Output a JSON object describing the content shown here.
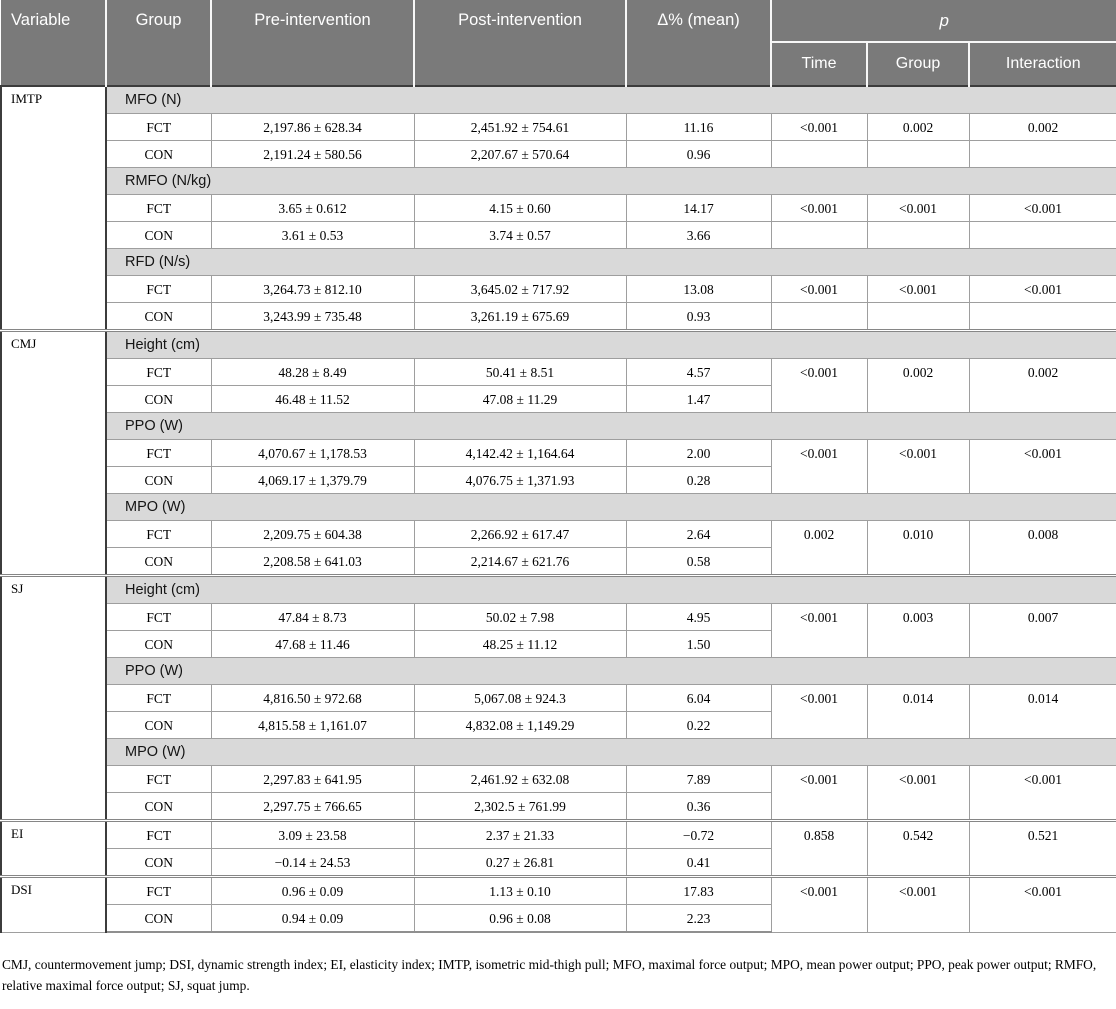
{
  "header": {
    "variable": "Variable",
    "group": "Group",
    "pre": "Pre-intervention",
    "post": "Post-intervention",
    "delta": "Δ% (mean)",
    "p": "p",
    "p_sub": {
      "time": "Time",
      "group": "Group",
      "interaction": "Interaction"
    }
  },
  "colors": {
    "header_bg": "#7a7a7a",
    "band_bg": "#d9d9d9",
    "border_light": "#9e9e9e",
    "border_dark": "#3c3c3c"
  },
  "sections": [
    {
      "variable": "IMTP",
      "measures": [
        {
          "label": "MFO (N)",
          "p_merged": false,
          "rows": [
            {
              "group": "FCT",
              "pre": "2,197.86 ± 628.34",
              "post": "2,451.92 ± 754.61",
              "delta": "11.16",
              "p_time": "<0.001",
              "p_group": "0.002",
              "p_interaction": "0.002"
            },
            {
              "group": "CON",
              "pre": "2,191.24 ± 580.56",
              "post": "2,207.67 ± 570.64",
              "delta": "0.96",
              "p_time": "",
              "p_group": "",
              "p_interaction": ""
            }
          ]
        },
        {
          "label": "RMFO (N/kg)",
          "p_merged": false,
          "rows": [
            {
              "group": "FCT",
              "pre": "3.65 ± 0.612",
              "post": "4.15 ± 0.60",
              "delta": "14.17",
              "p_time": "<0.001",
              "p_group": "<0.001",
              "p_interaction": "<0.001"
            },
            {
              "group": "CON",
              "pre": "3.61 ± 0.53",
              "post": "3.74 ± 0.57",
              "delta": "3.66",
              "p_time": "",
              "p_group": "",
              "p_interaction": ""
            }
          ]
        },
        {
          "label": "RFD (N/s)",
          "p_merged": false,
          "rows": [
            {
              "group": "FCT",
              "pre": "3,264.73 ± 812.10",
              "post": "3,645.02 ± 717.92",
              "delta": "13.08",
              "p_time": "<0.001",
              "p_group": "<0.001",
              "p_interaction": "<0.001"
            },
            {
              "group": "CON",
              "pre": "3,243.99 ± 735.48",
              "post": "3,261.19 ± 675.69",
              "delta": "0.93",
              "p_time": "",
              "p_group": "",
              "p_interaction": ""
            }
          ]
        }
      ]
    },
    {
      "variable": "CMJ",
      "measures": [
        {
          "label": "Height (cm)",
          "p_merged": true,
          "rows": [
            {
              "group": "FCT",
              "pre": "48.28 ± 8.49",
              "post": "50.41 ± 8.51",
              "delta": "4.57",
              "p_time": "<0.001",
              "p_group": "0.002",
              "p_interaction": "0.002"
            },
            {
              "group": "CON",
              "pre": "46.48 ± 11.52",
              "post": "47.08 ± 11.29",
              "delta": "1.47"
            }
          ]
        },
        {
          "label": "PPO (W)",
          "p_merged": true,
          "rows": [
            {
              "group": "FCT",
              "pre": "4,070.67 ± 1,178.53",
              "post": "4,142.42 ± 1,164.64",
              "delta": "2.00",
              "p_time": "<0.001",
              "p_group": "<0.001",
              "p_interaction": "<0.001"
            },
            {
              "group": "CON",
              "pre": "4,069.17 ± 1,379.79",
              "post": "4,076.75 ± 1,371.93",
              "delta": "0.28"
            }
          ]
        },
        {
          "label": "MPO (W)",
          "p_merged": true,
          "rows": [
            {
              "group": "FCT",
              "pre": "2,209.75 ± 604.38",
              "post": "2,266.92 ± 617.47",
              "delta": "2.64",
              "p_time": "0.002",
              "p_group": "0.010",
              "p_interaction": "0.008"
            },
            {
              "group": "CON",
              "pre": "2,208.58 ± 641.03",
              "post": "2,214.67 ± 621.76",
              "delta": "0.58"
            }
          ]
        }
      ]
    },
    {
      "variable": "SJ",
      "measures": [
        {
          "label": "Height (cm)",
          "p_merged": true,
          "rows": [
            {
              "group": "FCT",
              "pre": "47.84 ± 8.73",
              "post": "50.02 ± 7.98",
              "delta": "4.95",
              "p_time": "<0.001",
              "p_group": "0.003",
              "p_interaction": "0.007"
            },
            {
              "group": "CON",
              "pre": "47.68 ± 11.46",
              "post": "48.25 ± 11.12",
              "delta": "1.50"
            }
          ]
        },
        {
          "label": "PPO (W)",
          "p_merged": true,
          "rows": [
            {
              "group": "FCT",
              "pre": "4,816.50 ± 972.68",
              "post": "5,067.08 ± 924.3",
              "delta": "6.04",
              "p_time": "<0.001",
              "p_group": "0.014",
              "p_interaction": "0.014"
            },
            {
              "group": "CON",
              "pre": "4,815.58 ± 1,161.07",
              "post": "4,832.08 ± 1,149.29",
              "delta": "0.22"
            }
          ]
        },
        {
          "label": "MPO (W)",
          "p_merged": true,
          "rows": [
            {
              "group": "FCT",
              "pre": "2,297.83 ± 641.95",
              "post": "2,461.92 ± 632.08",
              "delta": "7.89",
              "p_time": "<0.001",
              "p_group": "<0.001",
              "p_interaction": "<0.001"
            },
            {
              "group": "CON",
              "pre": "2,297.75 ± 766.65",
              "post": "2,302.5 ± 761.99",
              "delta": "0.36"
            }
          ]
        }
      ]
    },
    {
      "variable": "EI",
      "measures": [
        {
          "label": null,
          "p_merged": true,
          "rows": [
            {
              "group": "FCT",
              "pre": "3.09 ± 23.58",
              "post": "2.37 ± 21.33",
              "delta": "−0.72",
              "p_time": "0.858",
              "p_group": "0.542",
              "p_interaction": "0.521"
            },
            {
              "group": "CON",
              "pre": "−0.14 ± 24.53",
              "post": "0.27 ± 26.81",
              "delta": "0.41"
            }
          ]
        }
      ]
    },
    {
      "variable": "DSI",
      "measures": [
        {
          "label": null,
          "p_merged": true,
          "rows": [
            {
              "group": "FCT",
              "pre": "0.96 ± 0.09",
              "post": "1.13 ± 0.10",
              "delta": "17.83",
              "p_time": "<0.001",
              "p_group": "<0.001",
              "p_interaction": "<0.001"
            },
            {
              "group": "CON",
              "pre": "0.94 ± 0.09",
              "post": "0.96 ± 0.08",
              "delta": "2.23"
            }
          ]
        }
      ]
    }
  ],
  "footnote": "CMJ, countermovement jump; DSI, dynamic strength index; EI, elasticity index; IMTP, isometric mid-thigh pull; MFO, maximal force output; MPO, mean power output; PPO, peak power output; RMFO, relative maximal force output; SJ, squat jump."
}
